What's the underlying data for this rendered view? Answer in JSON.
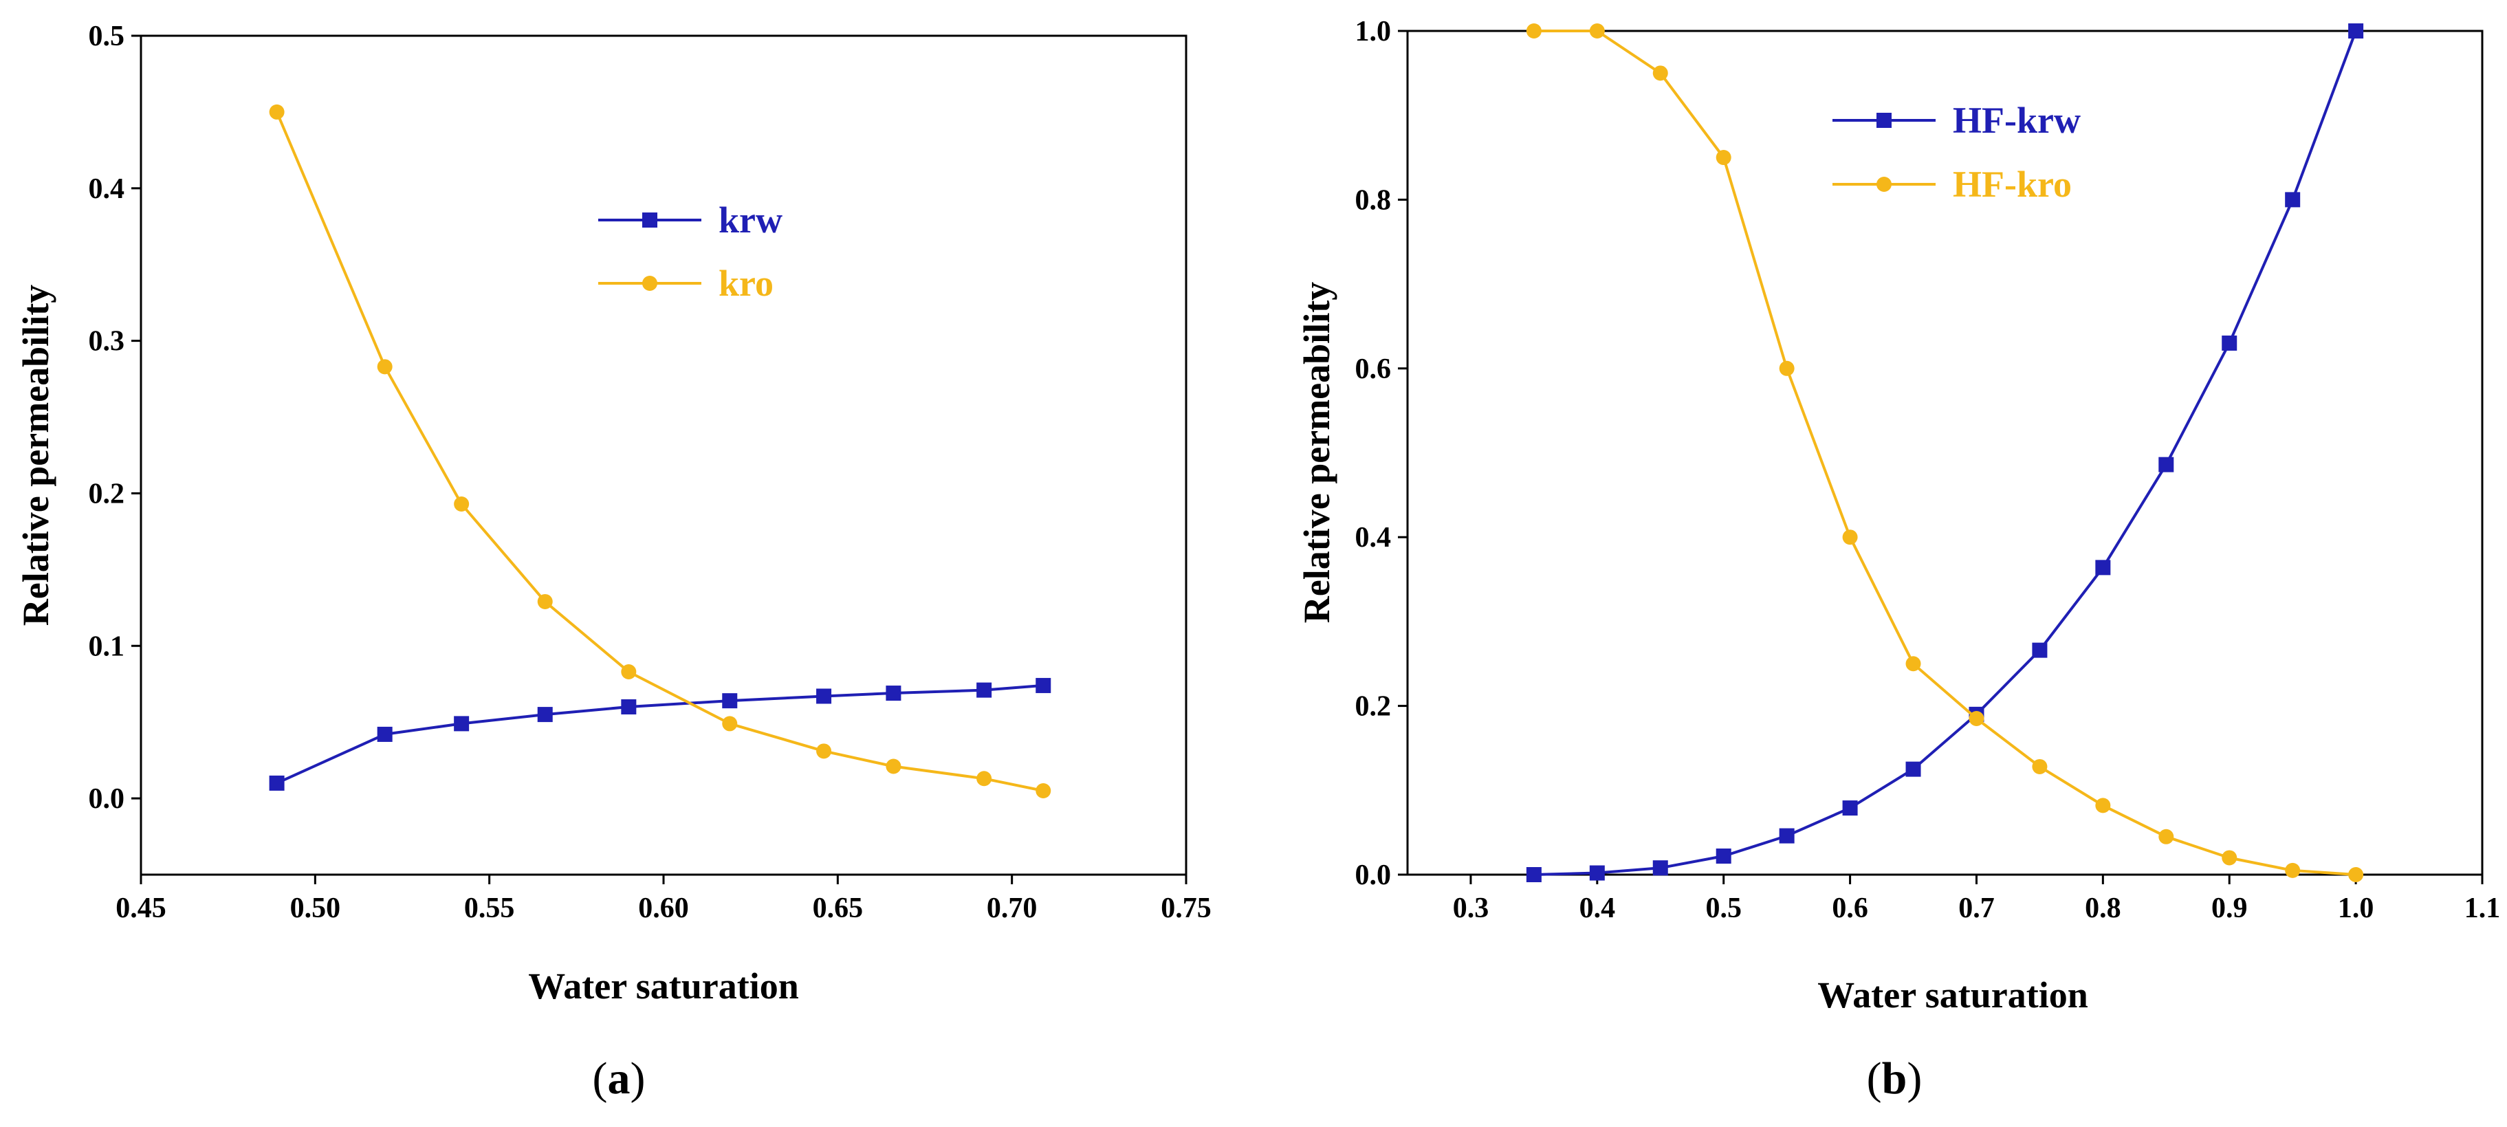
{
  "chart_data": [
    {
      "type": "line",
      "panel_label": "a",
      "xlabel": "Water saturation",
      "ylabel": "Relative permeability",
      "xlim": [
        0.45,
        0.75
      ],
      "ylim": [
        -0.05,
        0.5
      ],
      "xticks": [
        0.45,
        0.5,
        0.55,
        0.6,
        0.65,
        0.7,
        0.75
      ],
      "xtick_labels": [
        "0.45",
        "0.50",
        "0.55",
        "0.60",
        "0.65",
        "0.70",
        "0.75"
      ],
      "yticks": [
        0.0,
        0.1,
        0.2,
        0.3,
        0.4,
        0.5
      ],
      "ytick_labels": [
        "0.0",
        "0.1",
        "0.2",
        "0.3",
        "0.4",
        "0.5"
      ],
      "legend_position": "upper-middle",
      "series": [
        {
          "name": "krw",
          "color": "#1f1fb4",
          "marker": "square",
          "x": [
            0.489,
            0.52,
            0.542,
            0.566,
            0.59,
            0.619,
            0.646,
            0.666,
            0.692,
            0.709
          ],
          "y": [
            0.01,
            0.042,
            0.049,
            0.055,
            0.06,
            0.064,
            0.067,
            0.069,
            0.071,
            0.074
          ]
        },
        {
          "name": "kro",
          "color": "#f5b719",
          "marker": "circle",
          "x": [
            0.489,
            0.52,
            0.542,
            0.566,
            0.59,
            0.619,
            0.646,
            0.666,
            0.692,
            0.709
          ],
          "y": [
            0.45,
            0.283,
            0.193,
            0.129,
            0.083,
            0.049,
            0.031,
            0.021,
            0.013,
            0.005
          ]
        }
      ]
    },
    {
      "type": "line",
      "panel_label": "b",
      "xlabel": "Water saturation",
      "ylabel": "Relative permeability",
      "xlim": [
        0.25,
        1.1
      ],
      "ylim": [
        0.0,
        1.0
      ],
      "xticks": [
        0.3,
        0.4,
        0.5,
        0.6,
        0.7,
        0.8,
        0.9,
        1.0,
        1.1
      ],
      "xtick_labels": [
        "0.3",
        "0.4",
        "0.5",
        "0.6",
        "0.7",
        "0.8",
        "0.9",
        "1.0",
        "1.1"
      ],
      "yticks": [
        0.0,
        0.2,
        0.4,
        0.6,
        0.8,
        1.0
      ],
      "ytick_labels": [
        "0.0",
        "0.2",
        "0.4",
        "0.6",
        "0.8",
        "1.0"
      ],
      "legend_position": "upper-middle",
      "series": [
        {
          "name": "HF-krw",
          "color": "#1f1fb4",
          "marker": "square",
          "x": [
            0.35,
            0.4,
            0.45,
            0.5,
            0.55,
            0.6,
            0.65,
            0.7,
            0.75,
            0.8,
            0.85,
            0.9,
            0.95,
            1.0
          ],
          "y": [
            0.0,
            0.002,
            0.008,
            0.022,
            0.046,
            0.079,
            0.125,
            0.19,
            0.266,
            0.364,
            0.486,
            0.63,
            0.8,
            1.0
          ]
        },
        {
          "name": "HF-kro",
          "color": "#f5b719",
          "marker": "circle",
          "x": [
            0.35,
            0.4,
            0.45,
            0.5,
            0.55,
            0.6,
            0.65,
            0.7,
            0.75,
            0.8,
            0.85,
            0.9,
            0.95,
            1.0
          ],
          "y": [
            1.0,
            1.0,
            0.95,
            0.85,
            0.6,
            0.4,
            0.25,
            0.185,
            0.128,
            0.082,
            0.045,
            0.02,
            0.005,
            0.0
          ]
        }
      ]
    }
  ]
}
